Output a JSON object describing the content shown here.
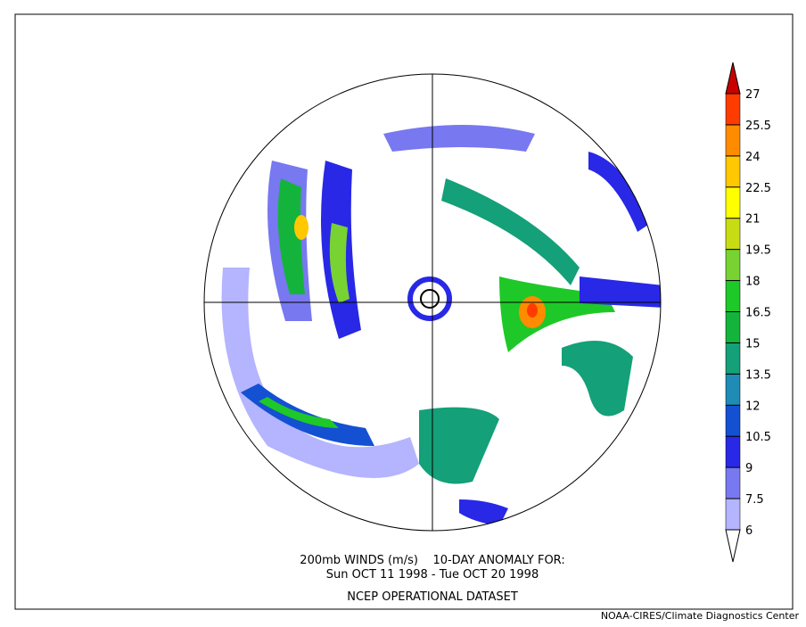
{
  "caption": [
    "200mb WINDS (m/s)    10-DAY ANOMALY FOR:",
    "Sun OCT 11 1998 - Tue OCT 20 1998",
    "NCEP OPERATIONAL DATASET"
  ],
  "credit": "NOAA-CIRES/Climate Diagnostics Center",
  "colorbar": {
    "ticks": [
      6,
      7.5,
      9,
      10.5,
      12,
      13.5,
      15,
      16.5,
      18,
      19.5,
      21,
      22.5,
      24,
      25.5,
      27
    ],
    "colors": [
      "#ffffff",
      "#b4b4ff",
      "#7878f0",
      "#2828e6",
      "#1450d2",
      "#1e8cb4",
      "#14a078",
      "#14b43c",
      "#1ec828",
      "#78d232",
      "#c8dc14",
      "#ffff00",
      "#ffc800",
      "#ff8c00",
      "#ff3c00",
      "#c80000"
    ]
  }
}
